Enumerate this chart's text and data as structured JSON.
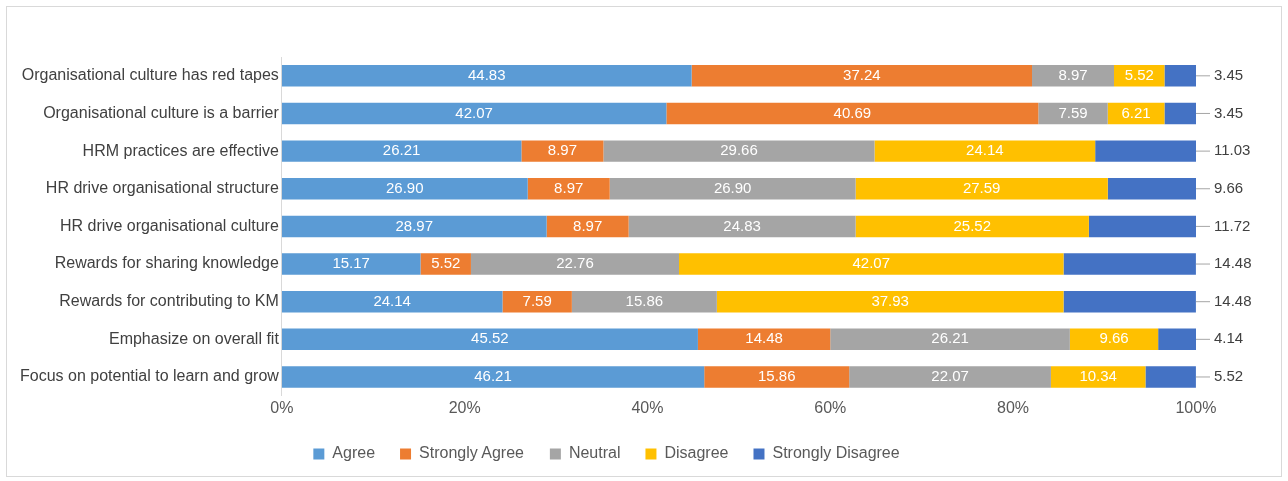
{
  "chart_data": {
    "type": "bar",
    "orientation": "horizontal",
    "stacked": true,
    "legend": "bottom",
    "grid": false,
    "categories": [
      "Organisational culture has red tapes",
      "Organisational culture is a barrier",
      "HRM practices are effective",
      "HR drive organisational structure",
      "HR drive organisational culture",
      "Rewards for sharing knowledge",
      "Rewards for contributing to KM",
      "Emphasize on overall fit",
      "Focus on potential to learn and grow"
    ],
    "xlim": [
      0,
      100.01
    ],
    "xticks": [
      {
        "value": 0,
        "label": "0%"
      },
      {
        "value": 20,
        "label": "20%"
      },
      {
        "value": 40,
        "label": "40%"
      },
      {
        "value": 60,
        "label": "60%"
      },
      {
        "value": 80,
        "label": "80%"
      },
      {
        "value": 100,
        "label": "100%"
      }
    ],
    "series": [
      {
        "name": "Agree",
        "color": "#5b9bd5",
        "values": [
          44.83,
          42.07,
          26.21,
          26.9,
          28.97,
          15.17,
          24.14,
          45.52,
          46.21
        ],
        "value_labels": [
          "44.83",
          "42.07",
          "26.21",
          "26.90",
          "28.97",
          "15.17",
          "24.14",
          "45.52",
          "46.21"
        ]
      },
      {
        "name": "Strongly Agree",
        "color": "#ed7d31",
        "values": [
          37.24,
          40.69,
          8.97,
          8.97,
          8.97,
          5.52,
          7.59,
          14.48,
          15.86
        ],
        "value_labels": [
          "37.24",
          "40.69",
          "8.97",
          "8.97",
          "8.97",
          "5.52",
          "7.59",
          "14.48",
          "15.86"
        ]
      },
      {
        "name": "Neutral",
        "color": "#a5a5a5",
        "values": [
          8.97,
          7.59,
          29.66,
          26.9,
          24.83,
          22.76,
          15.86,
          26.21,
          22.07
        ],
        "value_labels": [
          "8.97",
          "7.59",
          "29.66",
          "26.90",
          "24.83",
          "22.76",
          "15.86",
          "26.21",
          "22.07"
        ]
      },
      {
        "name": "Disagree",
        "color": "#ffc000",
        "values": [
          5.52,
          6.21,
          24.14,
          27.59,
          25.52,
          42.07,
          37.93,
          9.66,
          10.34
        ],
        "value_labels": [
          "5.52",
          "6.21",
          "24.14",
          "27.59",
          "25.52",
          "42.07",
          "37.93",
          "9.66",
          "10.34"
        ]
      },
      {
        "name": "Strongly Disagree",
        "color": "#4472c4",
        "values": [
          3.45,
          3.45,
          11.03,
          9.66,
          11.72,
          14.48,
          14.48,
          4.14,
          5.52
        ],
        "value_labels": [
          "3.45",
          "3.45",
          "11.03",
          "9.66",
          "11.72",
          "14.48",
          "14.48",
          "4.14",
          "5.52"
        ]
      }
    ]
  }
}
